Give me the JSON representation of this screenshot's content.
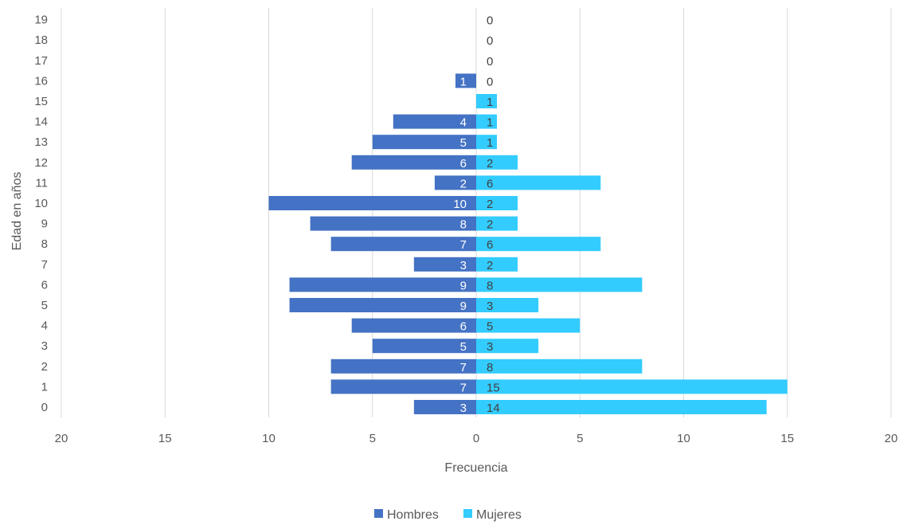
{
  "chart_data": {
    "type": "bar",
    "orientation": "horizontal",
    "title": "",
    "xlabel": "Frecuencia",
    "ylabel": "Edad en años",
    "categories": [
      "0",
      "1",
      "2",
      "3",
      "4",
      "5",
      "6",
      "7",
      "8",
      "9",
      "10",
      "11",
      "12",
      "13",
      "14",
      "15",
      "16",
      "17",
      "18",
      "19"
    ],
    "series": [
      {
        "name": "Hombres",
        "color": "#4472C4",
        "side": "left",
        "values": [
          3,
          7,
          7,
          5,
          6,
          9,
          9,
          3,
          7,
          8,
          10,
          2,
          6,
          5,
          4,
          0,
          1,
          0,
          0,
          0
        ],
        "labels": [
          "3",
          "7",
          "7",
          "5",
          "6",
          "9",
          "9",
          "3",
          "7",
          "8",
          "10",
          "2",
          "6",
          "5",
          "4",
          "",
          "1",
          "",
          "",
          ""
        ]
      },
      {
        "name": "Mujeres",
        "color": "#33CCFF",
        "side": "right",
        "values": [
          14,
          15,
          8,
          3,
          5,
          3,
          8,
          2,
          6,
          2,
          2,
          6,
          2,
          1,
          1,
          1,
          0,
          0,
          0,
          0
        ],
        "labels": [
          "14",
          "15",
          "8",
          "3",
          "5",
          "3",
          "8",
          "2",
          "6",
          "2",
          "2",
          "6",
          "2",
          "1",
          "1",
          "1",
          "0",
          "0",
          "0",
          "0"
        ]
      }
    ],
    "x_ticks": [
      "20",
      "15",
      "10",
      "5",
      "0",
      "5",
      "10",
      "15",
      "20"
    ],
    "xlim": [
      -20,
      20
    ],
    "grid": "vertical",
    "legend": "bottom"
  }
}
